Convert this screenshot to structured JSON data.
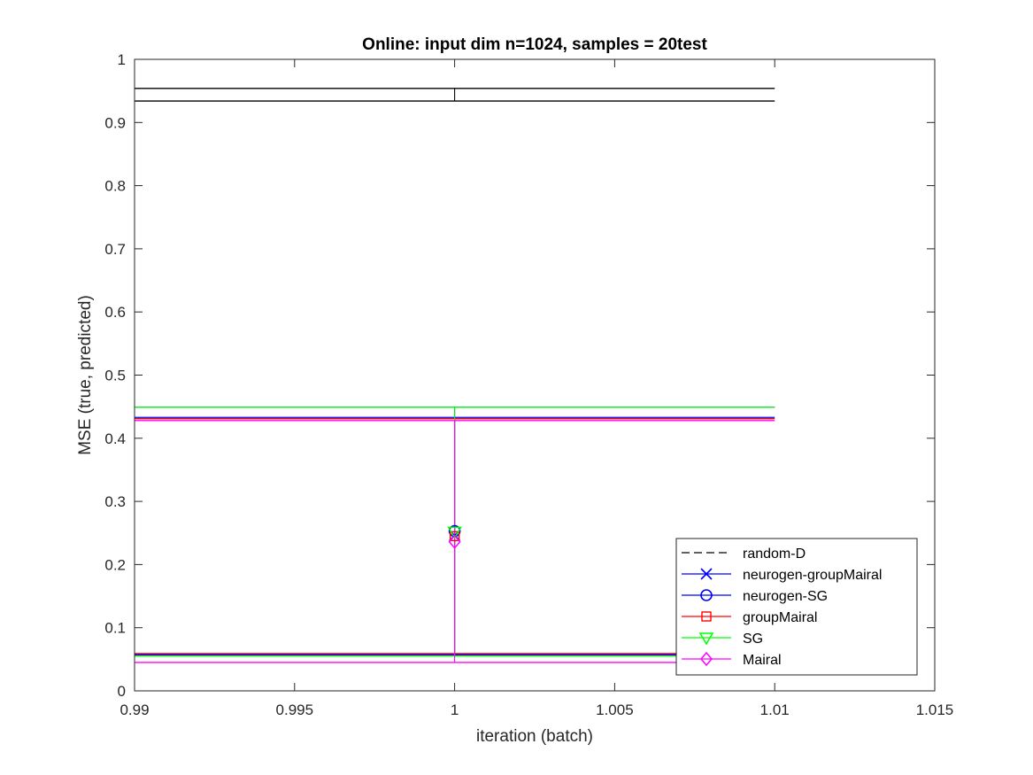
{
  "chart_data": {
    "type": "line",
    "title": "Online:  input dim n=1024, samples = 20test",
    "xlabel": "iteration (batch)",
    "ylabel": "MSE (true, predicted)",
    "xlim": [
      0.99,
      1.015
    ],
    "ylim": [
      0,
      1
    ],
    "xticks": [
      0.99,
      0.995,
      1,
      1.005,
      1.01,
      1.015
    ],
    "xtick_labels": [
      "0.99",
      "0.995",
      "1",
      "1.005",
      "1.01",
      "1.015"
    ],
    "yticks": [
      0,
      0.1,
      0.2,
      0.3,
      0.4,
      0.5,
      0.6,
      0.7,
      0.8,
      0.9,
      1
    ],
    "ytick_labels": [
      "0",
      "0.1",
      "0.2",
      "0.3",
      "0.4",
      "0.5",
      "0.6",
      "0.7",
      "0.8",
      "0.9",
      "1"
    ],
    "grid": false,
    "legend_position": "bottom-right",
    "errorbar_x": 1,
    "errorbar_cap_range": [
      0.99,
      1.01
    ],
    "series": [
      {
        "name": "random-D",
        "color": "#000000",
        "dashed": true,
        "marker": "none",
        "value": 0.944,
        "lower": 0.934,
        "upper": 0.954
      },
      {
        "name": "neurogen-groupMairal",
        "color": "#0000ff",
        "dashed": false,
        "marker": "x",
        "value": 0.246,
        "lower": 0.058,
        "upper": 0.433
      },
      {
        "name": "neurogen-SG",
        "color": "#0000ff",
        "dashed": false,
        "marker": "circle",
        "value": 0.253,
        "lower": 0.057,
        "upper": 0.449
      },
      {
        "name": "groupMairal",
        "color": "#ff0000",
        "dashed": false,
        "marker": "square",
        "value": 0.245,
        "lower": 0.059,
        "upper": 0.431
      },
      {
        "name": "SG",
        "color": "#00ff00",
        "dashed": false,
        "marker": "triangle-down",
        "value": 0.252,
        "lower": 0.055,
        "upper": 0.449
      },
      {
        "name": "Mairal",
        "color": "#ff00ff",
        "dashed": false,
        "marker": "diamond",
        "value": 0.236,
        "lower": 0.045,
        "upper": 0.428
      }
    ]
  }
}
